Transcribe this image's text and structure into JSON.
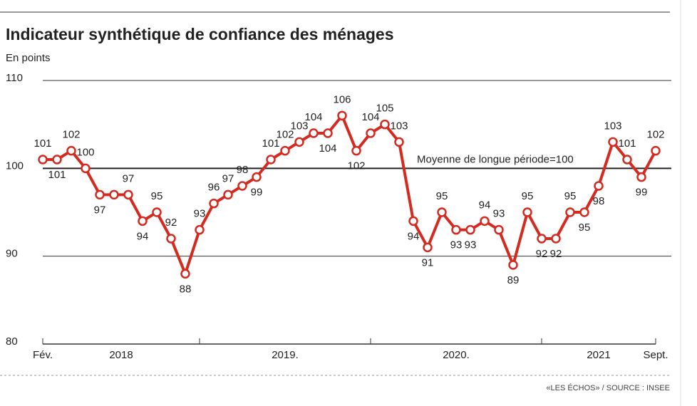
{
  "chart_data": {
    "type": "line",
    "title": "Indicateur synthétique de confiance des ménages",
    "subtitle": "En points",
    "annotation": "Moyenne de longue période=100",
    "source": "«LES ÉCHOS» / SOURCE : INSEE",
    "categories": [
      "Fév.",
      null,
      null,
      null,
      null,
      null,
      null,
      null,
      null,
      null,
      null,
      null,
      null,
      null,
      null,
      null,
      null,
      null,
      null,
      null,
      null,
      null,
      null,
      null,
      null,
      null,
      null,
      null,
      null,
      null,
      null,
      null,
      null,
      null,
      null,
      null,
      null,
      null,
      null,
      null,
      null,
      null,
      null,
      "Sept."
    ],
    "year_labels": [
      "2018",
      "2019.",
      "2020.",
      "2021"
    ],
    "series": [
      {
        "name": "Indicateur",
        "color": "#d42a20",
        "values": [
          101,
          101,
          102,
          100,
          97,
          97,
          97,
          94,
          95,
          92,
          88,
          93,
          96,
          97,
          98,
          99,
          101,
          102,
          103,
          104,
          104,
          106,
          102,
          104,
          105,
          103,
          94,
          91,
          95,
          93,
          93,
          94,
          93,
          89,
          95,
          92,
          92,
          95,
          95,
          98,
          103,
          101,
          99,
          102
        ]
      }
    ],
    "ylim": [
      80,
      110
    ],
    "yticks": [
      80,
      90,
      100,
      110
    ],
    "reference": 100,
    "grid": true
  }
}
